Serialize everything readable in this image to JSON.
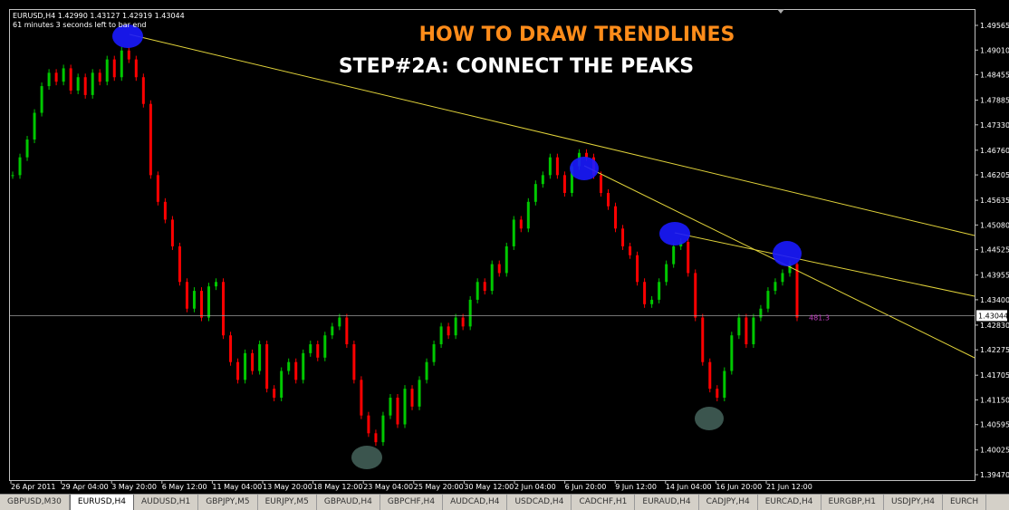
{
  "header": {
    "symbol_line": "EURUSD,H4  1.42990 1.43127 1.42919 1.43044",
    "timer": "61 minutes 3 seconds left to bar end"
  },
  "title": "HOW TO DRAW TRENDLINES",
  "subtitle": "STEP#2A: CONNECT THE PEAKS",
  "price_axis": {
    "ylim": [
      1.3947,
      1.49565
    ],
    "yticks": [
      {
        "value": 1.49565,
        "label": "1.49565"
      },
      {
        "value": 1.4901,
        "label": "1.49010"
      },
      {
        "value": 1.48455,
        "label": "1.48455"
      },
      {
        "value": 1.47885,
        "label": "1.47885"
      },
      {
        "value": 1.4733,
        "label": "1.47330"
      },
      {
        "value": 1.4676,
        "label": "1.46760"
      },
      {
        "value": 1.46205,
        "label": "1.46205"
      },
      {
        "value": 1.45635,
        "label": "1.45635"
      },
      {
        "value": 1.4508,
        "label": "1.45080"
      },
      {
        "value": 1.44525,
        "label": "1.44525"
      },
      {
        "value": 1.43955,
        "label": "1.43955"
      },
      {
        "value": 1.434,
        "label": "1.43400"
      },
      {
        "value": 1.4283,
        "label": "1.42830"
      },
      {
        "value": 1.42275,
        "label": "1.42275"
      },
      {
        "value": 1.41705,
        "label": "1.41705"
      },
      {
        "value": 1.4115,
        "label": "1.41150"
      },
      {
        "value": 1.40595,
        "label": "1.40595"
      },
      {
        "value": 1.40025,
        "label": "1.40025"
      },
      {
        "value": 1.3947,
        "label": "1.39470"
      }
    ],
    "current": {
      "value": 1.43044,
      "label": "1.43044"
    },
    "spread_label": "481.3"
  },
  "time_axis": [
    "26 Apr 2011",
    "29 Apr 04:00",
    "3 May 20:00",
    "6 May 12:00",
    "11 May 04:00",
    "13 May 20:00",
    "18 May 12:00",
    "23 May 04:00",
    "25 May 20:00",
    "30 May 12:00",
    "2 Jun 04:00",
    "6 Jun 20:00",
    "9 Jun 12:00",
    "14 Jun 04:00",
    "16 Jun 20:00",
    "21 Jun 12:00"
  ],
  "closes": [
    1.462,
    1.466,
    1.47,
    1.476,
    1.482,
    1.485,
    1.483,
    1.486,
    1.481,
    1.484,
    1.48,
    1.485,
    1.483,
    1.488,
    1.484,
    1.49,
    1.488,
    1.484,
    1.478,
    1.462,
    1.456,
    1.452,
    1.446,
    1.438,
    1.432,
    1.436,
    1.43,
    1.437,
    1.438,
    1.426,
    1.42,
    1.416,
    1.422,
    1.418,
    1.424,
    1.414,
    1.412,
    1.418,
    1.42,
    1.416,
    1.422,
    1.424,
    1.421,
    1.426,
    1.428,
    1.43,
    1.424,
    1.416,
    1.408,
    1.404,
    1.402,
    1.408,
    1.412,
    1.406,
    1.414,
    1.41,
    1.416,
    1.42,
    1.424,
    1.428,
    1.426,
    1.43,
    1.428,
    1.434,
    1.438,
    1.436,
    1.442,
    1.44,
    1.446,
    1.452,
    1.45,
    1.456,
    1.46,
    1.462,
    1.466,
    1.462,
    1.458,
    1.464,
    1.467,
    1.466,
    1.462,
    1.458,
    1.455,
    1.45,
    1.446,
    1.444,
    1.438,
    1.433,
    1.434,
    1.438,
    1.442,
    1.446,
    1.447,
    1.44,
    1.43,
    1.42,
    1.414,
    1.412,
    1.418,
    1.426,
    1.43,
    1.424,
    1.43,
    1.432,
    1.436,
    1.438,
    1.44,
    1.442,
    1.43
  ],
  "tabs": [
    "GBPUSD,M30",
    "EURUSD,H4",
    "AUDUSD,H1",
    "GBPJPY,M5",
    "EURJPY,M5",
    "GBPAUD,H4",
    "GBPCHF,H4",
    "AUDCAD,H4",
    "USDCAD,H4",
    "CADCHF,H1",
    "EURAUD,H4",
    "CADJPY,H4",
    "EURCAD,H4",
    "EURGBP,H1",
    "USDJPY,H4",
    "EURCH"
  ],
  "active_tab": 1
}
